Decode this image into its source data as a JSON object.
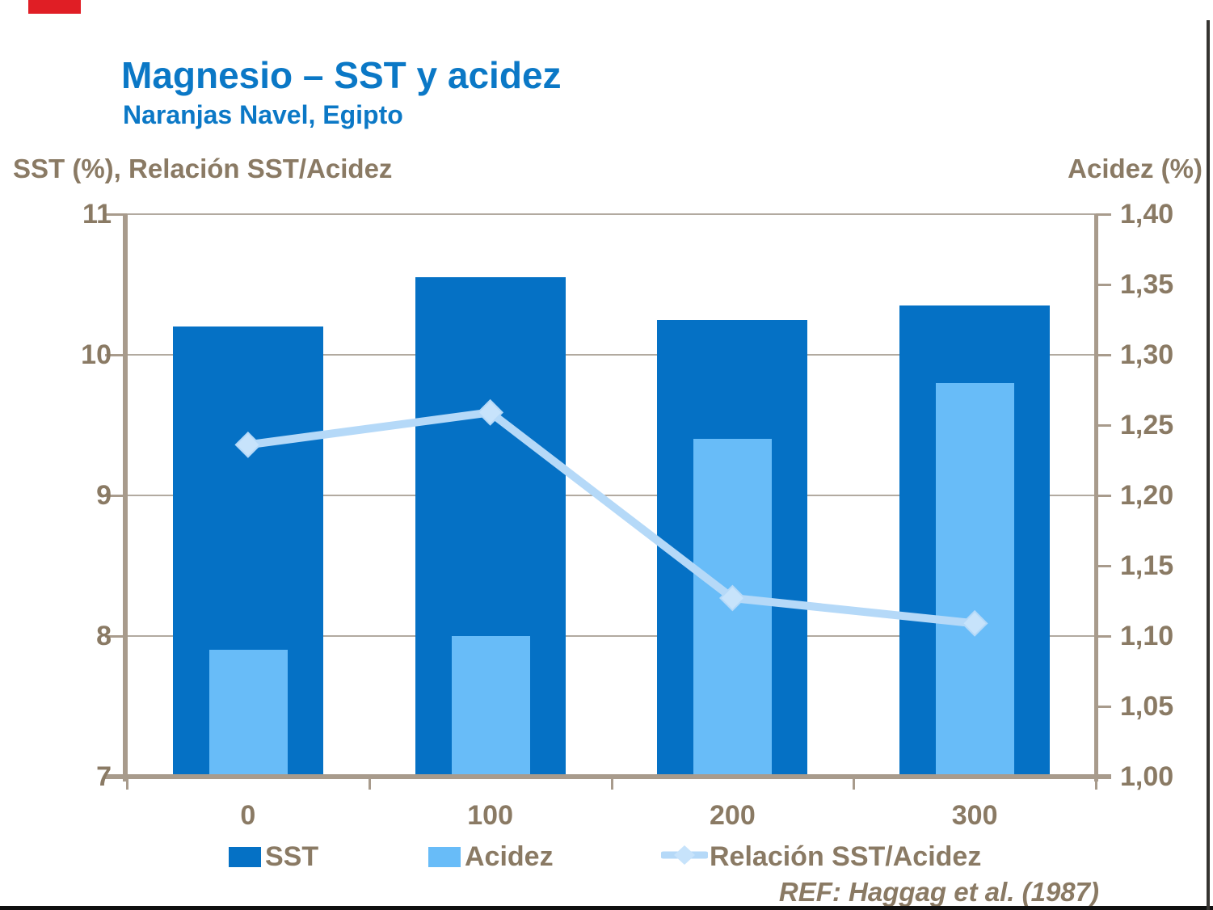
{
  "header": {
    "title": "Magnesio – SST y acidez",
    "subtitle": "Naranjas Navel, Egipto"
  },
  "axis_headers": {
    "left": "SST (%), Relación SST/Acidez",
    "right": "Acidez (%)"
  },
  "chart_data": {
    "type": "bar+line combo",
    "categories": [
      "0",
      "100",
      "200",
      "300"
    ],
    "series": [
      {
        "name": "SST",
        "type": "bar",
        "axis": "left",
        "values": [
          10.2,
          10.55,
          10.25,
          10.35
        ]
      },
      {
        "name": "Acidez",
        "type": "bar",
        "axis": "right",
        "values": [
          1.09,
          1.1,
          1.24,
          1.28
        ]
      },
      {
        "name": "Relación SST/Acidez",
        "type": "line",
        "axis": "left",
        "values": [
          9.36,
          9.59,
          8.27,
          8.09
        ]
      }
    ],
    "left_axis": {
      "label": "SST (%), Relación SST/Acidez",
      "min": 7,
      "max": 11,
      "tick_values": [
        11,
        10,
        9,
        8,
        7
      ],
      "tick_labels": [
        "11",
        "10",
        "9",
        "8",
        "7"
      ]
    },
    "right_axis": {
      "label": "Acidez (%)",
      "min": 1.0,
      "max": 1.4,
      "tick_values": [
        1.4,
        1.35,
        1.3,
        1.25,
        1.2,
        1.15,
        1.1,
        1.05,
        1.0
      ],
      "tick_labels": [
        "1,40",
        "1,35",
        "1,30",
        "1,25",
        "1,20",
        "1,15",
        "1,10",
        "1,05",
        "1,00"
      ]
    },
    "grid": "horizontal gridlines at left-axis integers only",
    "legend_position": "bottom"
  },
  "legend": {
    "items": [
      {
        "label": "SST"
      },
      {
        "label": "Acidez"
      },
      {
        "label": "Relación SST/Acidez"
      }
    ]
  },
  "footer": {
    "reference": "REF: Haggag et al. (1987)"
  },
  "colors": {
    "title_blue": "#0B78C6",
    "sst_bar": "#0571C5",
    "acidez_bar": "#68BCF8",
    "ratio_line": "#B5D9F8",
    "ratio_marker": "#C7E3FB",
    "text_brown": "#8A7A64",
    "axis_taupe": "#A89B8C",
    "gridline_gray": "#B2AAA0",
    "red_accent": "#E01E25",
    "bottom_border": "#101010",
    "right_border": "#363431"
  }
}
